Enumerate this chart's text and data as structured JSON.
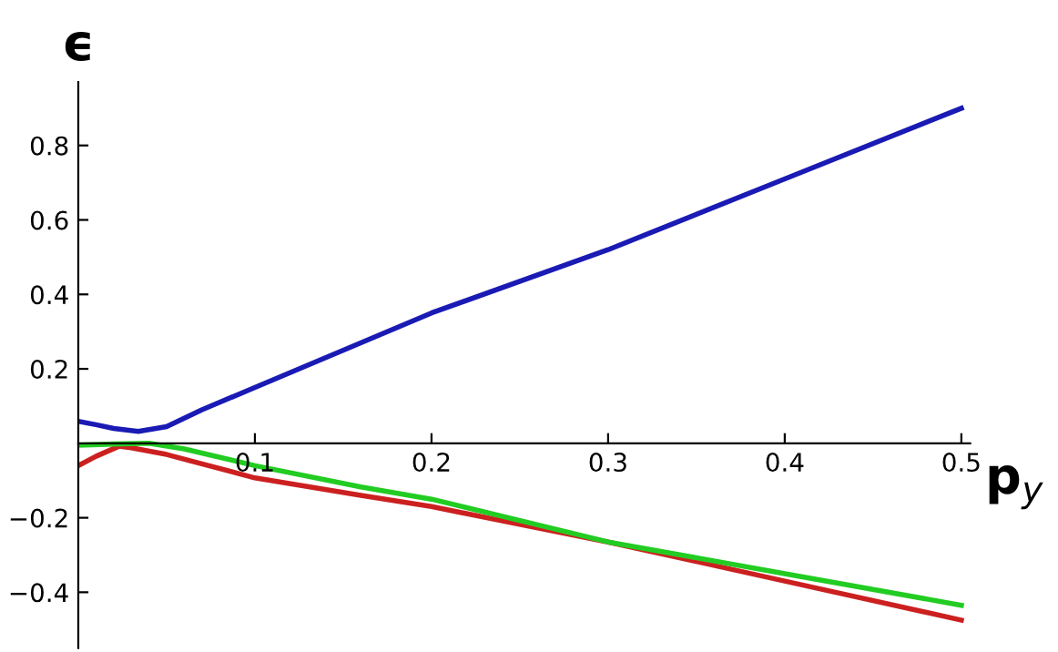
{
  "chart_data": {
    "type": "line",
    "xlabel": "p$_{y}$",
    "ylabel": "ϵ",
    "xlim": [
      0,
      0.505
    ],
    "ylim": [
      -0.55,
      0.97
    ],
    "xticks": [
      0.1,
      0.2,
      0.3,
      0.4,
      0.5
    ],
    "yticks": [
      -0.4,
      -0.2,
      0.2,
      0.4,
      0.6,
      0.8
    ],
    "grid": false,
    "legend": false,
    "series": [
      {
        "color": "#1a1ab4",
        "x": [
          0,
          0.01,
          0.02,
          0.034,
          0.05,
          0.07,
          0.1,
          0.2,
          0.3,
          0.4,
          0.5
        ],
        "values": [
          0.059,
          0.05,
          0.04,
          0.032,
          0.045,
          0.09,
          0.15,
          0.35,
          0.52,
          0.71,
          0.9
        ]
      },
      {
        "color": "#cc2020",
        "x": [
          0,
          0.01,
          0.023,
          0.03,
          0.05,
          0.1,
          0.16,
          0.2,
          0.3,
          0.4,
          0.5
        ],
        "values": [
          -0.06,
          -0.035,
          -0.008,
          -0.012,
          -0.03,
          -0.093,
          -0.14,
          -0.17,
          -0.265,
          -0.37,
          -0.475
        ]
      },
      {
        "color": "#22cc22",
        "x": [
          0,
          0.02,
          0.04,
          0.06,
          0.1,
          0.16,
          0.2,
          0.3,
          0.4,
          0.5
        ],
        "values": [
          -0.005,
          -0.002,
          0,
          -0.015,
          -0.06,
          -0.117,
          -0.15,
          -0.265,
          -0.35,
          -0.435
        ]
      }
    ]
  }
}
